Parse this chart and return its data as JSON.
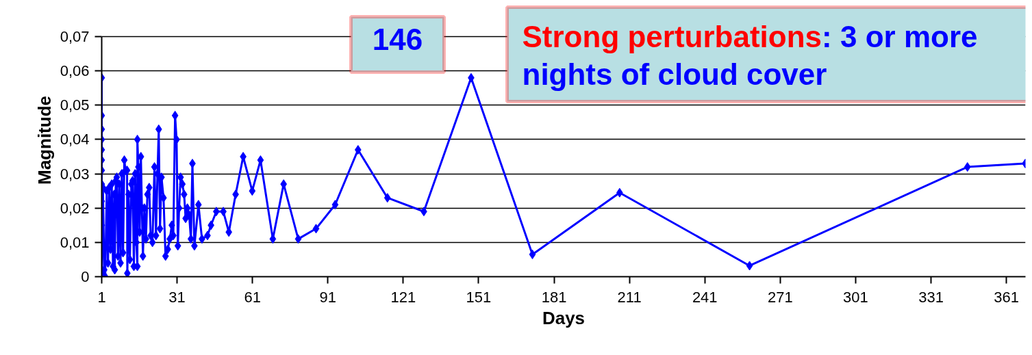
{
  "chart_data": {
    "type": "line",
    "xlabel": "Days",
    "ylabel": "Magnitude",
    "x": [
      1,
      1,
      1,
      1,
      1,
      1,
      1,
      1,
      1,
      1,
      1,
      1,
      1.5,
      2,
      2.4,
      3,
      3.5,
      4,
      4.5,
      5,
      5.5,
      6,
      6.2,
      6.6,
      7,
      7.5,
      8,
      8.5,
      9,
      9.5,
      10,
      10.5,
      11.1,
      11.2,
      11.7,
      12.2,
      12.8,
      13.3,
      13.8,
      14.3,
      14.8,
      15.2,
      15.2,
      15.6,
      16.1,
      16.6,
      17.0,
      17.4,
      18,
      18.6,
      19.2,
      19.9,
      20.5,
      21.2,
      22,
      22.6,
      23.2,
      23.7,
      24.2,
      24.8,
      25.6,
      26.4,
      27.3,
      28.1,
      28.9,
      29.5,
      30.2,
      30.8,
      31.3,
      31.8,
      32.4,
      33.1,
      33.8,
      34.4,
      35.1,
      35.8,
      36.5,
      37.1,
      37.9,
      39.5,
      40.9,
      43.1,
      44.5,
      46.6,
      49.4,
      51.6,
      54.3,
      57.3,
      60.9,
      64.2,
      69.1,
      73.4,
      79.2,
      86.3,
      93.9,
      103,
      114.7,
      129.2,
      148,
      172.4,
      207.1,
      258.8,
      345.5,
      368.5
    ],
    "series": [
      {
        "color": "#0000ff",
        "values": [
          0.058,
          0.047,
          0.043,
          0.04,
          0.037,
          0.034,
          0.031,
          0.027,
          0.022,
          0.015,
          0.008,
          0.001,
          0.026,
          0.002,
          0.0,
          0.025,
          0.004,
          0.026,
          0.008,
          0.027,
          0.003,
          0.024,
          0.002,
          0.028,
          0.029,
          0.006,
          0.027,
          0.004,
          0.03,
          0.007,
          0.034,
          0.031,
          0.031,
          0.001,
          0.024,
          0.005,
          0.027,
          0.028,
          0.003,
          0.03,
          0.01,
          0.003,
          0.04,
          0.032,
          0.013,
          0.035,
          0.02,
          0.006,
          0.02,
          0.011,
          0.024,
          0.026,
          0.012,
          0.01,
          0.032,
          0.012,
          0.03,
          0.043,
          0.014,
          0.029,
          0.023,
          0.006,
          0.008,
          0.011,
          0.015,
          0.012,
          0.047,
          0.04,
          0.009,
          0.02,
          0.029,
          0.027,
          0.024,
          0.017,
          0.02,
          0.018,
          0.011,
          0.033,
          0.009,
          0.021,
          0.011,
          0.012,
          0.015,
          0.019,
          0.019,
          0.013,
          0.024,
          0.035,
          0.025,
          0.034,
          0.011,
          0.027,
          0.011,
          0.014,
          0.021,
          0.037,
          0.023,
          0.019,
          0.058,
          0.0065,
          0.0245,
          0.0032,
          0.032,
          0.033
        ]
      }
    ],
    "xlim": [
      1,
      368.6
    ],
    "xticks": [
      1,
      31,
      61,
      91,
      121,
      151,
      181,
      211,
      241,
      271,
      301,
      331,
      361
    ],
    "ylim": [
      0,
      0.07
    ],
    "yticks": [
      0,
      {
        "value": 0.01,
        "label": "0,01"
      },
      {
        "value": 0.02,
        "label": "0,02"
      },
      {
        "value": 0.03,
        "label": "0,03"
      },
      {
        "value": 0.04,
        "label": "0,04"
      },
      {
        "value": 0.05,
        "label": "0,05"
      },
      {
        "value": 0.06,
        "label": "0,06"
      },
      {
        "value": 0.07,
        "label": "0,07"
      }
    ],
    "grid": "y",
    "marker": "diamond",
    "line_style": "solid",
    "annotations": [
      "146",
      "Strong perturbations: 3 or more nights of cloud cover"
    ]
  }
}
